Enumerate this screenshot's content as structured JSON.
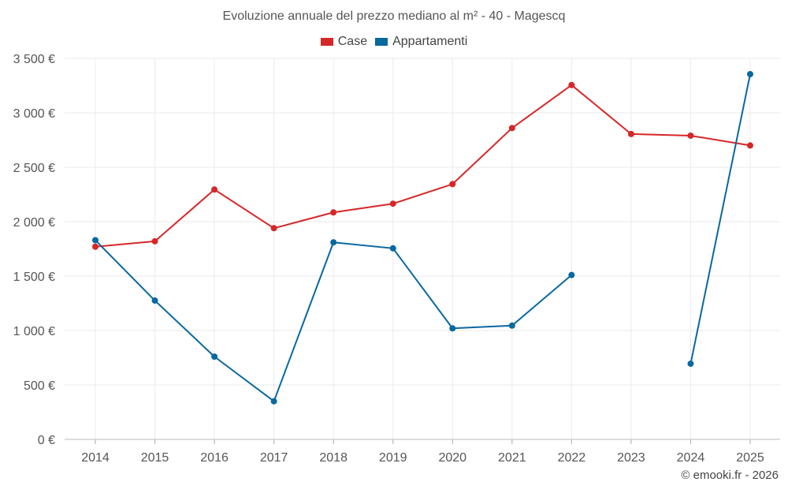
{
  "chart_data": {
    "type": "line",
    "title": "Evoluzione annuale del prezzo mediano al m² - 40 - Magescq",
    "categories": [
      "2014",
      "2015",
      "2016",
      "2017",
      "2018",
      "2019",
      "2020",
      "2021",
      "2022",
      "2023",
      "2024",
      "2025"
    ],
    "ylim": [
      0,
      3500
    ],
    "yticks": [
      0,
      500,
      1000,
      1500,
      2000,
      2500,
      3000,
      3500
    ],
    "ytick_labels": [
      "0 €",
      "500 €",
      "1 000 €",
      "1 500 €",
      "2 000 €",
      "2 500 €",
      "3 000 €",
      "3 500 €"
    ],
    "grid": true,
    "legend_position": "top-center",
    "series": [
      {
        "name": "Case",
        "color": "#d62728",
        "values": [
          1770,
          1820,
          2295,
          1940,
          2085,
          2165,
          2345,
          2860,
          3255,
          2805,
          2790,
          2700
        ]
      },
      {
        "name": "Appartamenti",
        "color": "#0868a0",
        "values": [
          1830,
          1275,
          760,
          350,
          1810,
          1755,
          1020,
          1045,
          1510,
          null,
          695,
          3355
        ]
      }
    ]
  },
  "credit": "© emooki.fr - 2026"
}
